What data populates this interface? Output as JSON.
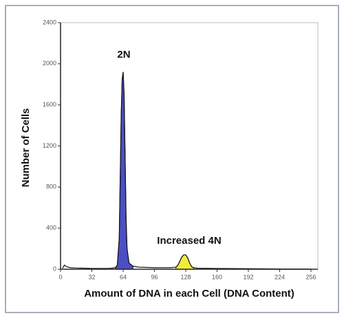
{
  "chart_data": {
    "type": "line",
    "xlabel": "Amount of DNA in each Cell (DNA Content)",
    "ylabel": "Number of Cells",
    "annotations": [
      "2N",
      "Increased 4N"
    ],
    "x": [
      2,
      4,
      6,
      10,
      16,
      24,
      32,
      40,
      48,
      52,
      56,
      58,
      60,
      61,
      62,
      63,
      64,
      65,
      66,
      67,
      68,
      70,
      74,
      80,
      96,
      112,
      118,
      120,
      122,
      124,
      126,
      128,
      130,
      132,
      134,
      136,
      140,
      160,
      192,
      224,
      256
    ],
    "series": [
      {
        "color": "#111111",
        "fill": false,
        "values": [
          10,
          40,
          25,
          15,
          12,
          10,
          8,
          8,
          8,
          10,
          15,
          40,
          300,
          900,
          1500,
          1850,
          1920,
          1700,
          1100,
          500,
          200,
          60,
          30,
          20,
          15,
          15,
          20,
          40,
          80,
          120,
          140,
          140,
          110,
          60,
          25,
          15,
          10,
          8,
          5,
          3,
          2
        ]
      },
      {
        "color": "#4b4fc4",
        "fill": true,
        "values": [
          null,
          null,
          null,
          null,
          null,
          null,
          null,
          null,
          null,
          null,
          15,
          40,
          300,
          900,
          1500,
          1850,
          1920,
          1700,
          1100,
          500,
          200,
          60,
          30,
          null,
          null,
          null,
          null,
          null,
          null,
          null,
          null,
          null,
          null,
          null,
          null,
          null,
          null,
          null,
          null,
          null,
          null
        ]
      },
      {
        "color": "#f0ec3a",
        "fill": true,
        "values": [
          null,
          null,
          null,
          null,
          null,
          null,
          null,
          null,
          null,
          null,
          null,
          null,
          null,
          null,
          null,
          null,
          null,
          null,
          null,
          null,
          null,
          null,
          null,
          null,
          null,
          null,
          20,
          40,
          80,
          120,
          140,
          140,
          110,
          60,
          25,
          15,
          null,
          null,
          null,
          null,
          null
        ]
      }
    ],
    "xlim": [
      0,
      256
    ],
    "xticks": [
      0,
      32,
      64,
      96,
      128,
      160,
      192,
      224,
      256
    ],
    "ylim": [
      0,
      2400
    ],
    "yticks": [
      0,
      400,
      800,
      1200,
      1600,
      2000,
      2400
    ]
  }
}
